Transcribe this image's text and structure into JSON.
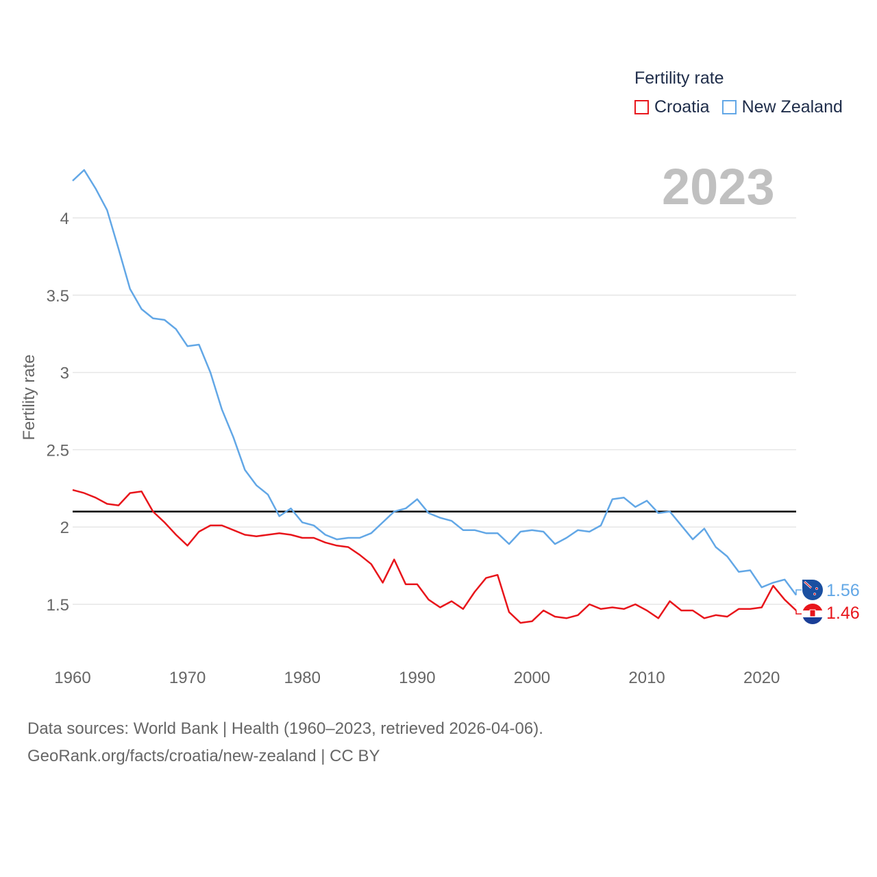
{
  "legend": {
    "title": "Fertility rate",
    "items": [
      {
        "name": "Croatia",
        "color": "#e8151b"
      },
      {
        "name": "New Zealand",
        "color": "#62a7e6"
      }
    ]
  },
  "year_label": "2023",
  "footer": {
    "line1": "Data sources: World Bank | Health (1960–2023, retrieved 2026-04-06).",
    "line2": "GeoRank.org/facts/croatia/new-zealand | CC BY"
  },
  "chart_data": {
    "type": "line",
    "title": "Fertility rate",
    "xlabel": "",
    "ylabel": "Fertility rate",
    "xlim": [
      1960,
      2023
    ],
    "ylim": [
      1.25,
      4.35
    ],
    "x_ticks": [
      1960,
      1970,
      1980,
      1990,
      2000,
      2010,
      2020
    ],
    "y_ticks": [
      1.5,
      2,
      2.5,
      3,
      3.5,
      4
    ],
    "y_tick_labels": [
      "1.5",
      "2",
      "2.5",
      "3",
      "3.5",
      "4"
    ],
    "reference_line": {
      "value": 2.1,
      "color": "#000000"
    },
    "x": [
      1960,
      1961,
      1962,
      1963,
      1964,
      1965,
      1966,
      1967,
      1968,
      1969,
      1970,
      1971,
      1972,
      1973,
      1974,
      1975,
      1976,
      1977,
      1978,
      1979,
      1980,
      1981,
      1982,
      1983,
      1984,
      1985,
      1986,
      1987,
      1988,
      1989,
      1990,
      1991,
      1992,
      1993,
      1994,
      1995,
      1996,
      1997,
      1998,
      1999,
      2000,
      2001,
      2002,
      2003,
      2004,
      2005,
      2006,
      2007,
      2008,
      2009,
      2010,
      2011,
      2012,
      2013,
      2014,
      2015,
      2016,
      2017,
      2018,
      2019,
      2020,
      2021,
      2022,
      2023
    ],
    "series": [
      {
        "name": "Croatia",
        "color": "#e8151b",
        "end_label": "1.46",
        "values": [
          2.24,
          2.22,
          2.19,
          2.15,
          2.14,
          2.22,
          2.23,
          2.1,
          2.03,
          1.95,
          1.88,
          1.97,
          2.01,
          2.01,
          1.98,
          1.95,
          1.94,
          1.95,
          1.96,
          1.95,
          1.93,
          1.93,
          1.9,
          1.88,
          1.87,
          1.82,
          1.76,
          1.64,
          1.79,
          1.63,
          1.63,
          1.53,
          1.48,
          1.52,
          1.47,
          1.58,
          1.67,
          1.69,
          1.45,
          1.38,
          1.39,
          1.46,
          1.42,
          1.41,
          1.43,
          1.5,
          1.47,
          1.48,
          1.47,
          1.5,
          1.46,
          1.41,
          1.52,
          1.46,
          1.46,
          1.41,
          1.43,
          1.42,
          1.47,
          1.47,
          1.48,
          1.62,
          1.53,
          1.46
        ]
      },
      {
        "name": "New Zealand",
        "color": "#62a7e6",
        "end_label": "1.56",
        "values": [
          4.24,
          4.31,
          4.19,
          4.05,
          3.8,
          3.54,
          3.41,
          3.35,
          3.34,
          3.28,
          3.17,
          3.18,
          3.0,
          2.76,
          2.58,
          2.37,
          2.27,
          2.21,
          2.07,
          2.12,
          2.03,
          2.01,
          1.95,
          1.92,
          1.93,
          1.93,
          1.96,
          2.03,
          2.1,
          2.12,
          2.18,
          2.09,
          2.06,
          2.04,
          1.98,
          1.98,
          1.96,
          1.96,
          1.89,
          1.97,
          1.98,
          1.97,
          1.89,
          1.93,
          1.98,
          1.97,
          2.01,
          2.18,
          2.19,
          2.13,
          2.17,
          2.09,
          2.1,
          2.01,
          1.92,
          1.99,
          1.87,
          1.81,
          1.71,
          1.72,
          1.61,
          1.64,
          1.66,
          1.56
        ]
      }
    ]
  }
}
